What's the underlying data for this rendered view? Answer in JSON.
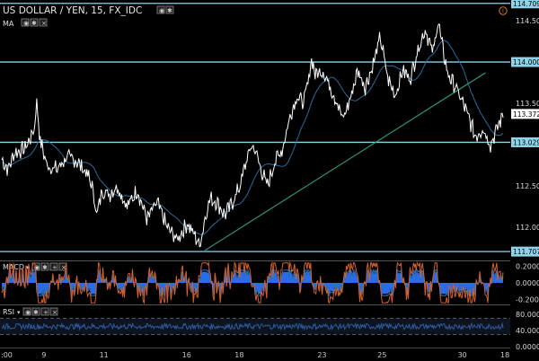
{
  "header": {
    "title": "US DOLLAR / YEN, 15, FX_IDC",
    "ma_label": "MA",
    "macd_label": "MACD",
    "rsi_label": "RSI",
    "alert_glyph": "!"
  },
  "colors": {
    "background": "#000000",
    "price": "#ffffff",
    "ma": "#2a6a9a",
    "level_line": "#8ed3ea",
    "trendline": "#2e9e86",
    "macd_line": "#d4602b",
    "macd_signal": "#2f6fb3",
    "macd_hist": "#2f78ff",
    "rsi_line": "#2e5a9a",
    "dashed": "#5a5a5a"
  },
  "chart_data": {
    "type": "line",
    "title": "US DOLLAR / YEN, 15, FX_IDC",
    "x_ticks": [
      ":00",
      "9",
      "11",
      "16",
      "18",
      "23",
      "25",
      "30",
      "18"
    ],
    "y_ticks": [
      "114.500",
      "114.000",
      "113.500",
      "113.000",
      "112.500",
      "112.000"
    ],
    "ylim": [
      111.6,
      114.75
    ],
    "current_price": "113.372",
    "current_price_value": 113.372,
    "levels": [
      {
        "value": 114.709,
        "label": "114.709"
      },
      {
        "value": 114.0,
        "label": "114.000"
      },
      {
        "value": 113.029,
        "label": "113.029"
      },
      {
        "value": 111.707,
        "label": "111.707"
      }
    ],
    "trendline": {
      "start_value": 111.72,
      "end_value": 113.87
    },
    "price_anchors": [
      [
        0,
        112.82
      ],
      [
        0.012,
        112.7
      ],
      [
        0.025,
        112.9
      ],
      [
        0.045,
        112.95
      ],
      [
        0.055,
        113.05
      ],
      [
        0.065,
        113.2
      ],
      [
        0.07,
        113.55
      ],
      [
        0.075,
        113.1
      ],
      [
        0.09,
        112.75
      ],
      [
        0.11,
        112.7
      ],
      [
        0.13,
        112.85
      ],
      [
        0.15,
        112.8
      ],
      [
        0.17,
        112.65
      ],
      [
        0.18,
        112.5
      ],
      [
        0.19,
        112.15
      ],
      [
        0.2,
        112.45
      ],
      [
        0.215,
        112.4
      ],
      [
        0.23,
        112.5
      ],
      [
        0.25,
        112.25
      ],
      [
        0.27,
        112.45
      ],
      [
        0.29,
        112.1
      ],
      [
        0.31,
        112.3
      ],
      [
        0.33,
        112.0
      ],
      [
        0.35,
        111.85
      ],
      [
        0.37,
        112.05
      ],
      [
        0.385,
        111.9
      ],
      [
        0.395,
        111.78
      ],
      [
        0.405,
        112.1
      ],
      [
        0.415,
        112.35
      ],
      [
        0.43,
        112.3
      ],
      [
        0.445,
        112.15
      ],
      [
        0.46,
        112.3
      ],
      [
        0.475,
        112.5
      ],
      [
        0.49,
        112.85
      ],
      [
        0.5,
        113.0
      ],
      [
        0.51,
        112.85
      ],
      [
        0.52,
        112.65
      ],
      [
        0.53,
        112.5
      ],
      [
        0.545,
        112.8
      ],
      [
        0.56,
        112.95
      ],
      [
        0.575,
        113.35
      ],
      [
        0.59,
        113.6
      ],
      [
        0.6,
        113.5
      ],
      [
        0.61,
        113.7
      ],
      [
        0.618,
        114.05
      ],
      [
        0.625,
        113.85
      ],
      [
        0.64,
        113.9
      ],
      [
        0.655,
        113.7
      ],
      [
        0.67,
        113.5
      ],
      [
        0.68,
        113.3
      ],
      [
        0.695,
        113.55
      ],
      [
        0.71,
        113.9
      ],
      [
        0.725,
        113.7
      ],
      [
        0.74,
        113.95
      ],
      [
        0.755,
        114.3
      ],
      [
        0.77,
        113.8
      ],
      [
        0.785,
        113.6
      ],
      [
        0.8,
        113.9
      ],
      [
        0.815,
        113.8
      ],
      [
        0.83,
        114.15
      ],
      [
        0.845,
        114.4
      ],
      [
        0.86,
        114.1
      ],
      [
        0.87,
        114.5
      ],
      [
        0.88,
        114.15
      ],
      [
        0.89,
        113.85
      ],
      [
        0.905,
        113.7
      ],
      [
        0.92,
        113.5
      ],
      [
        0.93,
        113.35
      ],
      [
        0.945,
        113.1
      ],
      [
        0.96,
        113.2
      ],
      [
        0.975,
        113.0
      ],
      [
        0.985,
        113.15
      ],
      [
        1.0,
        113.37
      ]
    ],
    "macd": {
      "y_ticks": [
        "0.2000",
        "0.0000",
        "-0.2000"
      ],
      "ylim": [
        -0.26,
        0.26
      ]
    },
    "rsi": {
      "y_ticks": [
        "80.0000",
        "40.0000",
        "0.0000"
      ],
      "ylim": [
        0,
        100
      ],
      "bands": [
        70,
        30
      ]
    }
  }
}
